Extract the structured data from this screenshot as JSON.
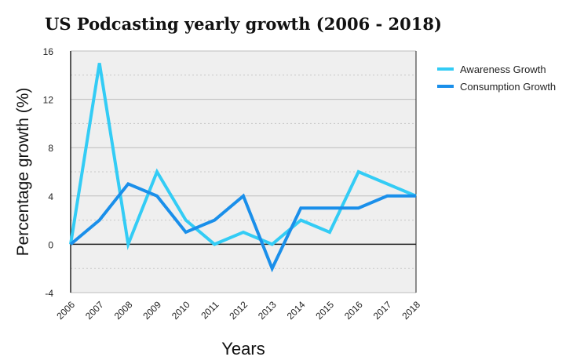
{
  "chart_data": {
    "type": "line",
    "title": "US Podcasting yearly growth (2006 - 2018)",
    "xlabel": "Years",
    "ylabel": "Percentage growth (%)",
    "categories": [
      "2006",
      "2007",
      "2008",
      "2009",
      "2010",
      "2011",
      "2012",
      "2013",
      "2014",
      "2015",
      "2016",
      "2017",
      "2018"
    ],
    "ylim": [
      -4,
      16
    ],
    "yticks": [
      -4,
      0,
      4,
      8,
      12,
      16
    ],
    "grid": true,
    "legend_position": "right",
    "series": [
      {
        "name": "Awareness Growth",
        "color": "#33ccf5",
        "values": [
          0,
          15,
          0,
          6,
          2,
          0,
          1,
          0,
          2,
          1,
          6,
          5,
          4
        ]
      },
      {
        "name": "Consumption Growth",
        "color": "#1a8fea",
        "values": [
          0,
          2,
          5,
          4,
          1,
          2,
          4,
          -2,
          3,
          3,
          3,
          4,
          4
        ]
      }
    ]
  }
}
